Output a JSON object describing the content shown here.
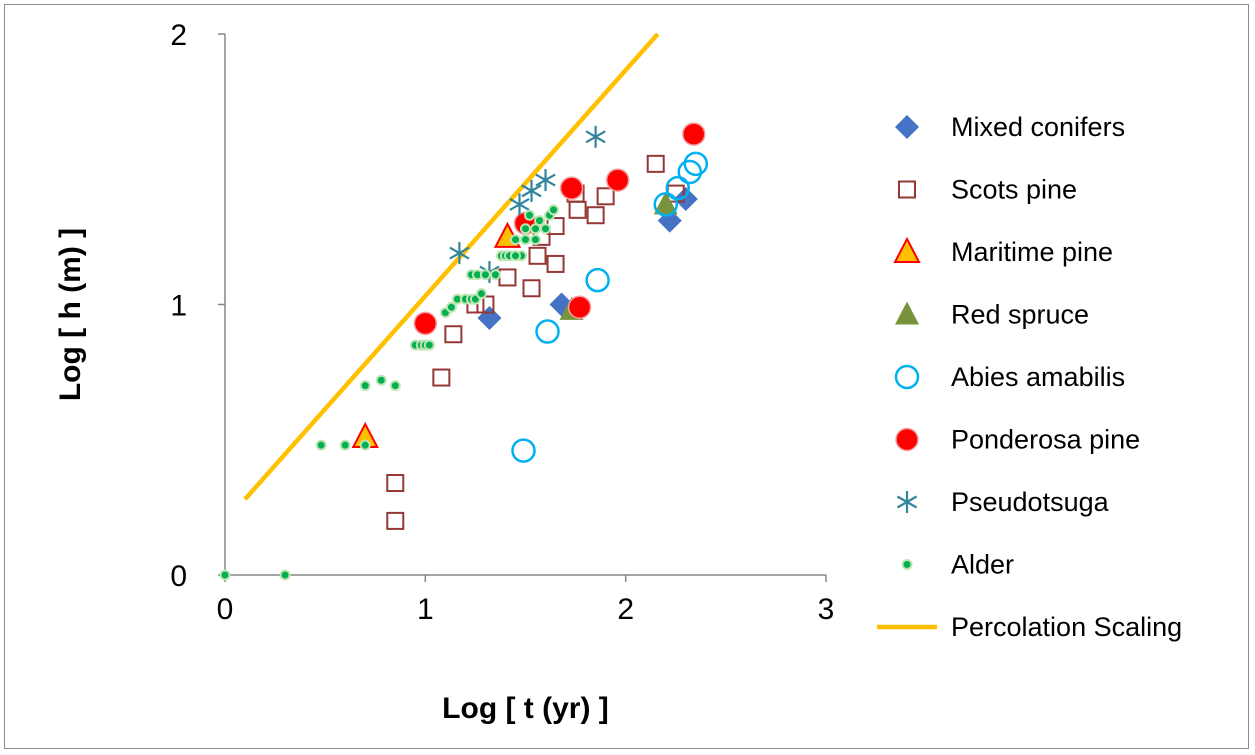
{
  "chart_data": {
    "type": "scatter",
    "title": "",
    "xlabel": "Log [ t (yr) ]",
    "ylabel": "Log [ h (m) ]",
    "xlim": [
      0,
      3
    ],
    "ylim": [
      0,
      2
    ],
    "xticks": [
      "0",
      "1",
      "2",
      "3"
    ],
    "yticks": [
      "0",
      "1",
      "2"
    ],
    "legend_position": "right",
    "series": [
      {
        "name": "Mixed conifers",
        "marker": "diamond",
        "color": "#4472C4",
        "points": [
          [
            1.32,
            0.95
          ],
          [
            1.68,
            1.0
          ],
          [
            2.22,
            1.31
          ],
          [
            2.3,
            1.39
          ]
        ]
      },
      {
        "name": "Scots pine",
        "marker": "square-open",
        "color": "#953735",
        "points": [
          [
            0.85,
            0.34
          ],
          [
            0.85,
            0.2
          ],
          [
            1.08,
            0.73
          ],
          [
            1.14,
            0.89
          ],
          [
            1.25,
            1.0
          ],
          [
            1.3,
            1.0
          ],
          [
            1.41,
            1.1
          ],
          [
            1.53,
            1.06
          ],
          [
            1.56,
            1.18
          ],
          [
            1.65,
            1.15
          ],
          [
            1.75,
            1.41
          ],
          [
            1.76,
            1.35
          ],
          [
            1.85,
            1.33
          ],
          [
            1.9,
            1.4
          ],
          [
            2.15,
            1.52
          ],
          [
            2.25,
            1.41
          ],
          [
            1.58,
            1.25
          ],
          [
            1.65,
            1.29
          ]
        ]
      },
      {
        "name": "Maritime pine",
        "marker": "triangle",
        "color": "#FF0000",
        "fill": "#FFC000",
        "points": [
          [
            0.7,
            0.51
          ],
          [
            1.41,
            1.25
          ]
        ]
      },
      {
        "name": "Red spruce",
        "marker": "triangle-solid",
        "color": "#77933C",
        "points": [
          [
            1.73,
            0.98
          ],
          [
            2.2,
            1.37
          ]
        ]
      },
      {
        "name": "Abies amabilis",
        "marker": "circle-open",
        "color": "#00B0F0",
        "points": [
          [
            1.49,
            0.46
          ],
          [
            1.61,
            0.9
          ],
          [
            1.86,
            1.09
          ],
          [
            2.2,
            1.37
          ],
          [
            2.26,
            1.43
          ],
          [
            2.32,
            1.49
          ],
          [
            2.35,
            1.52
          ]
        ]
      },
      {
        "name": "Ponderosa pine",
        "marker": "circle",
        "color": "#FF0000",
        "points": [
          [
            1.0,
            0.93
          ],
          [
            1.5,
            1.3
          ],
          [
            1.73,
            1.43
          ],
          [
            1.77,
            0.99
          ],
          [
            1.96,
            1.46
          ],
          [
            2.34,
            1.63
          ]
        ]
      },
      {
        "name": "Pseudotsuga",
        "marker": "star",
        "color": "#31859C",
        "points": [
          [
            1.17,
            1.19
          ],
          [
            1.32,
            1.12
          ],
          [
            1.47,
            1.37
          ],
          [
            1.53,
            1.42
          ],
          [
            1.6,
            1.46
          ],
          [
            1.85,
            1.62
          ]
        ]
      },
      {
        "name": "Alder",
        "marker": "dot",
        "color": "#00B050",
        "points": [
          [
            0.0,
            0.0
          ],
          [
            0.3,
            0.0
          ],
          [
            0.48,
            0.48
          ],
          [
            0.6,
            0.48
          ],
          [
            0.7,
            0.48
          ],
          [
            0.7,
            0.7
          ],
          [
            0.78,
            0.72
          ],
          [
            0.85,
            0.7
          ],
          [
            0.95,
            0.85
          ],
          [
            0.98,
            0.85
          ],
          [
            1.0,
            0.85
          ],
          [
            1.02,
            0.85
          ],
          [
            1.1,
            0.97
          ],
          [
            1.13,
            0.99
          ],
          [
            1.16,
            1.02
          ],
          [
            1.2,
            1.02
          ],
          [
            1.23,
            1.02
          ],
          [
            1.25,
            1.02
          ],
          [
            1.28,
            1.04
          ],
          [
            1.23,
            1.11
          ],
          [
            1.26,
            1.11
          ],
          [
            1.3,
            1.11
          ],
          [
            1.38,
            1.18
          ],
          [
            1.4,
            1.18
          ],
          [
            1.42,
            1.18
          ],
          [
            1.48,
            1.18
          ],
          [
            1.45,
            1.24
          ],
          [
            1.5,
            1.24
          ],
          [
            1.55,
            1.24
          ],
          [
            1.5,
            1.28
          ],
          [
            1.55,
            1.28
          ],
          [
            1.6,
            1.28
          ],
          [
            1.52,
            1.33
          ],
          [
            1.57,
            1.31
          ],
          [
            1.62,
            1.33
          ],
          [
            1.64,
            1.35
          ],
          [
            1.45,
            1.18
          ],
          [
            1.35,
            1.11
          ]
        ]
      }
    ],
    "line": {
      "name": "Percolation Scaling",
      "color": "#FFC000",
      "points": [
        [
          0.1,
          0.28
        ],
        [
          2.16,
          2.0
        ]
      ]
    }
  }
}
